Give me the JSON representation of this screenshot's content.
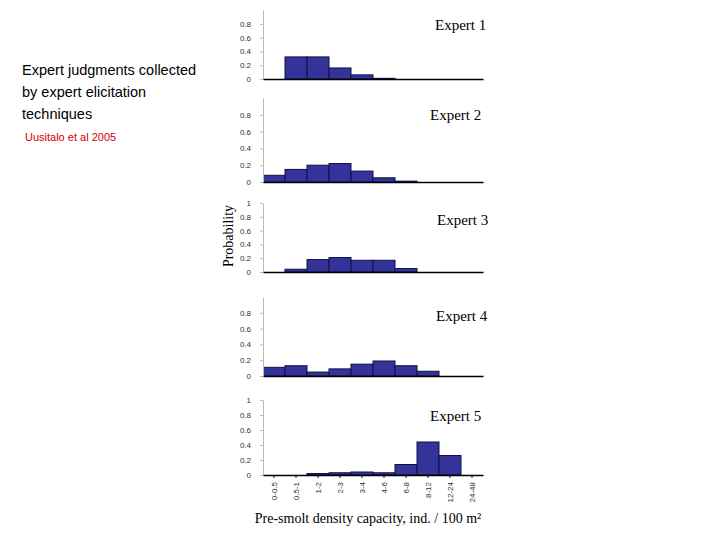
{
  "caption": {
    "lines": [
      "Expert judgments collected",
      "by expert elicitation",
      "techniques"
    ],
    "citation": "Uusitalo et al 2005"
  },
  "chart_data": [
    {
      "type": "bar",
      "title": "Expert 1",
      "tick_labels": "y",
      "categories": [
        "0-0.5",
        "0.5-1",
        "1-2",
        "2-3",
        "3-4",
        "4-6",
        "6-8",
        "8-12",
        "12-24",
        "24-48"
      ],
      "values": [
        0,
        0.32,
        0.32,
        0.16,
        0.06,
        0.01,
        0,
        0,
        0,
        0
      ],
      "color": "#33339a",
      "ylim": [
        0,
        1
      ],
      "yticks": [
        0,
        0.2,
        0.4,
        0.6,
        0.8
      ]
    },
    {
      "type": "bar",
      "title": "Expert 2",
      "tick_labels": "y",
      "categories": [
        "0-0.5",
        "0.5-1",
        "1-2",
        "2-3",
        "3-4",
        "4-6",
        "6-8",
        "8-12",
        "12-24",
        "24-48"
      ],
      "values": [
        0.08,
        0.15,
        0.2,
        0.22,
        0.13,
        0.05,
        0.01,
        0,
        0,
        0
      ],
      "color": "#33339a",
      "ylim": [
        0,
        1
      ],
      "yticks": [
        0,
        0.2,
        0.4,
        0.6,
        0.8
      ]
    },
    {
      "type": "bar",
      "title": "Expert 3",
      "tick_labels": "y",
      "y_label": "Probability",
      "categories": [
        "0-0.5",
        "0.5-1",
        "1-2",
        "2-3",
        "3-4",
        "4-6",
        "6-8",
        "8-12",
        "12-24",
        "24-48"
      ],
      "values": [
        0,
        0.04,
        0.18,
        0.21,
        0.17,
        0.17,
        0.05,
        0,
        0,
        0
      ],
      "color": "#33339a",
      "ylim": [
        0,
        1
      ],
      "yticks": [
        0,
        0.2,
        0.4,
        0.6,
        0.8,
        1
      ]
    },
    {
      "type": "bar",
      "title": "Expert 4",
      "tick_labels": "y",
      "categories": [
        "0-0.5",
        "0.5-1",
        "1-2",
        "2-3",
        "3-4",
        "4-6",
        "6-8",
        "8-12",
        "12-24",
        "24-48"
      ],
      "values": [
        0.11,
        0.13,
        0.05,
        0.09,
        0.15,
        0.19,
        0.13,
        0.06,
        0,
        0
      ],
      "color": "#33339a",
      "ylim": [
        0,
        1
      ],
      "yticks": [
        0,
        0.2,
        0.4,
        0.6,
        0.8
      ]
    },
    {
      "type": "bar",
      "title": "Expert 5",
      "x_label": "Pre-smolt density capacity, ind. / 100 m²",
      "categories": [
        "0-0.5",
        "0.5-1",
        "1-2",
        "2-3",
        "3-4",
        "4-6",
        "6-8",
        "8-12",
        "12-24",
        "24-48"
      ],
      "values": [
        0,
        0,
        0.02,
        0.03,
        0.04,
        0.03,
        0.14,
        0.44,
        0.26,
        0
      ],
      "color": "#33339a",
      "ylim": [
        0,
        1
      ],
      "yticks": [
        0,
        0.2,
        0.4,
        0.6,
        0.8,
        1
      ]
    }
  ]
}
